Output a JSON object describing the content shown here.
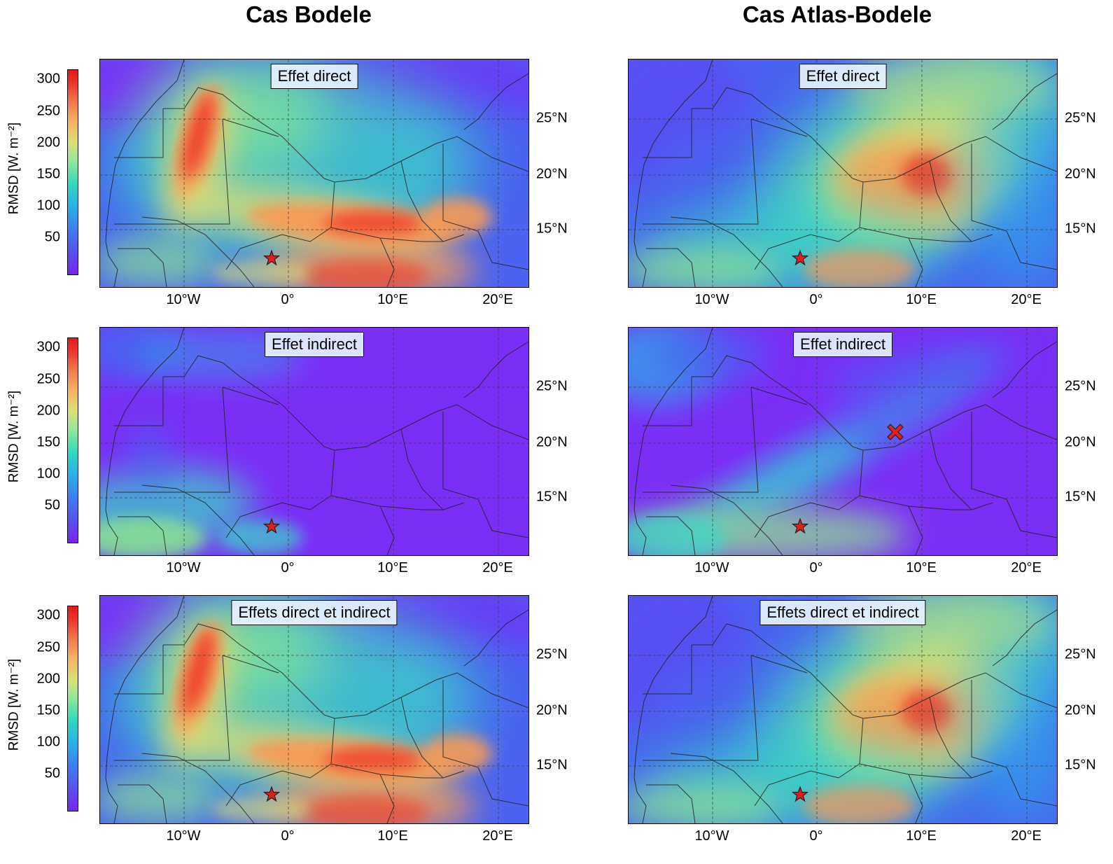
{
  "columns": {
    "left_title": "Cas Bodele",
    "right_title": "Cas Atlas-Bodele"
  },
  "rows": [
    {
      "label": "Effet direct"
    },
    {
      "label": "Effet indirect"
    },
    {
      "label": "Effets direct et indirect"
    }
  ],
  "axes": {
    "lon_ticks": [
      "10°W",
      "0°",
      "10°E",
      "20°E"
    ],
    "lat_ticks": [
      "25°N",
      "20°N",
      "15°N"
    ]
  },
  "colorbar": {
    "label": "RMSD [W. m⁻²]",
    "ticks": [
      "300",
      "250",
      "200",
      "150",
      "100",
      "50"
    ],
    "colormap": "rainbow",
    "colors": [
      "#7a22f0",
      "#3c7ef0",
      "#2fd7c0",
      "#d7e27a",
      "#f27c4c",
      "#e61818"
    ]
  },
  "markers": {
    "star": "star-icon",
    "cross": "x-cross-icon",
    "color": "#e01e1e"
  }
}
